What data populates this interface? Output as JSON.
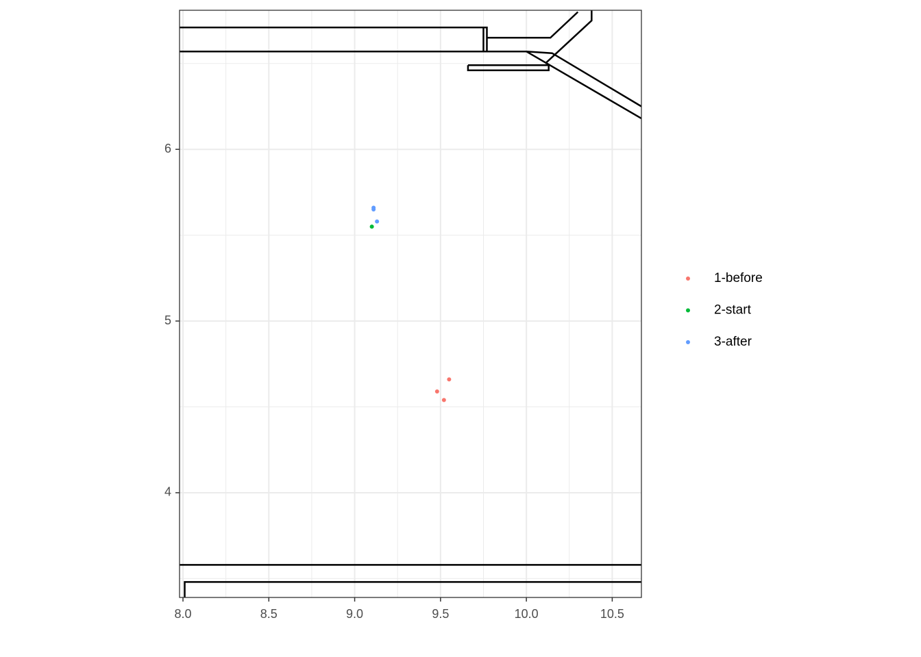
{
  "chart_data": {
    "type": "scatter",
    "xlim": [
      7.98,
      10.67
    ],
    "ylim": [
      3.39,
      6.81
    ],
    "xticks": [
      {
        "value": 8,
        "label": "8.0"
      },
      8.5,
      {
        "value": 9,
        "label": "9.0"
      },
      9.5,
      {
        "value": 10,
        "label": "10.0"
      },
      10.5
    ],
    "yticks": [
      4,
      5,
      6
    ],
    "grid": true,
    "legend": "right",
    "series": [
      {
        "name": "1-before",
        "color": "#F8766D",
        "x": [
          9.55,
          9.48,
          9.52
        ],
        "values": [
          4.66,
          4.59,
          4.54
        ]
      },
      {
        "name": "2-start",
        "color": "#00BA38",
        "x": [
          9.1
        ],
        "values": [
          5.55
        ]
      },
      {
        "name": "3-after",
        "color": "#619CFF",
        "x": [
          9.11,
          9.11,
          9.13
        ],
        "values": [
          5.66,
          5.65,
          5.58
        ]
      }
    ],
    "outlines": [
      {
        "x": [
          7.98,
          9.77,
          9.77
        ],
        "y": [
          6.71,
          6.71,
          6.57
        ]
      },
      {
        "x": [
          9.75,
          9.75
        ],
        "y": [
          6.71,
          6.57
        ]
      },
      {
        "x": [
          9.77,
          10.14,
          10.3
        ],
        "y": [
          6.65,
          6.65,
          6.8
        ]
      },
      {
        "x": [
          10.38,
          10.38,
          10.11
        ],
        "y": [
          6.81,
          6.75,
          6.5
        ]
      },
      {
        "x": [
          7.98,
          10.0,
          10.67
        ],
        "y": [
          6.57,
          6.57,
          6.18
        ]
      },
      {
        "x": [
          10.0,
          10.15,
          10.67
        ],
        "y": [
          6.57,
          6.56,
          6.25
        ]
      },
      {
        "x": [
          9.66,
          10.13,
          10.13,
          9.66,
          9.66
        ],
        "y": [
          6.49,
          6.49,
          6.46,
          6.46,
          6.49
        ]
      },
      {
        "x": [
          7.98,
          10.67
        ],
        "y": [
          3.58,
          3.58
        ]
      },
      {
        "x": [
          8.01,
          8.01,
          10.67
        ],
        "y": [
          3.39,
          3.48,
          3.48
        ]
      }
    ]
  }
}
